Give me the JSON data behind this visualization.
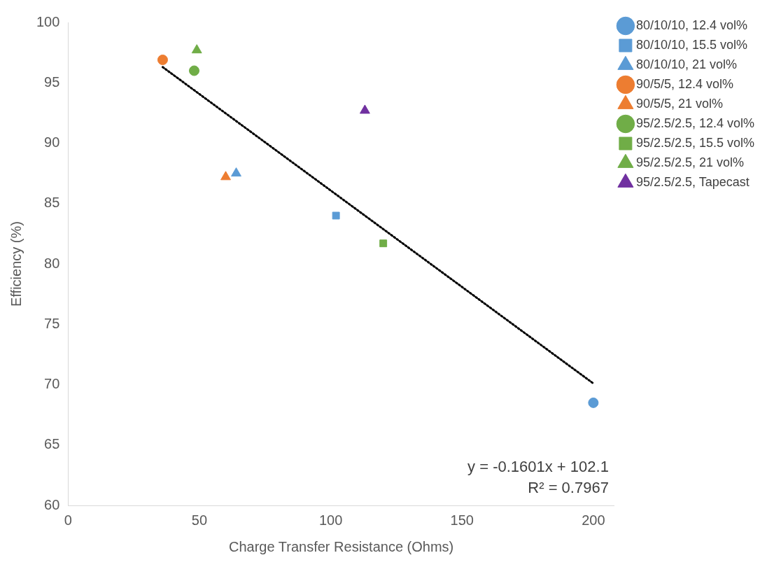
{
  "chart_data": {
    "type": "scatter",
    "xlabel": "Charge Transfer Resistance (Ohms)",
    "ylabel": "Efficiency (%)",
    "xlim": [
      0,
      208
    ],
    "xticks": [
      0,
      50,
      100,
      150,
      200
    ],
    "ylim": [
      60,
      100
    ],
    "yticks": [
      60,
      65,
      70,
      75,
      80,
      85,
      90,
      95,
      100
    ],
    "grid": false,
    "legend": "top right",
    "annotations": [
      "y = -0.1601x + 102.1",
      "R² = 0.7967"
    ],
    "series": [
      {
        "name": "80/10/10, 12.4 vol%",
        "color": "#5b9bd5",
        "marker": "circle",
        "x": [
          200
        ],
        "values": [
          68.5
        ]
      },
      {
        "name": "80/10/10, 15.5 vol%",
        "color": "#5b9bd5",
        "marker": "square",
        "x": [
          102
        ],
        "values": [
          84
        ]
      },
      {
        "name": "80/10/10, 21 vol%",
        "color": "#5b9bd5",
        "marker": "triangle",
        "x": [
          64
        ],
        "values": [
          87.5
        ]
      },
      {
        "name": "90/5/5, 12.4 vol%",
        "color": "#ed7d31",
        "marker": "circle",
        "x": [
          36
        ],
        "values": [
          96.9
        ]
      },
      {
        "name": "90/5/5, 21 vol%",
        "color": "#ed7d31",
        "marker": "triangle",
        "x": [
          60
        ],
        "values": [
          87.2
        ]
      },
      {
        "name": "95/2.5/2.5, 12.4 vol%",
        "color": "#70ad47",
        "marker": "circle",
        "x": [
          48
        ],
        "values": [
          96
        ]
      },
      {
        "name": "95/2.5/2.5, 15.5 vol%",
        "color": "#70ad47",
        "marker": "square",
        "x": [
          120
        ],
        "values": [
          81.7
        ]
      },
      {
        "name": "95/2.5/2.5, 21 vol%",
        "color": "#70ad47",
        "marker": "triangle",
        "x": [
          49
        ],
        "values": [
          97.7
        ]
      },
      {
        "name": "95/2.5/2.5, Tapecast",
        "color": "#7030a0",
        "marker": "triangle",
        "x": [
          113
        ],
        "values": [
          92.7
        ]
      },
      {
        "type": "line",
        "color": "#000000",
        "marker": "none",
        "line_style": "dotted",
        "x": [
          36,
          200
        ],
        "values": [
          96.3,
          70.1
        ]
      }
    ]
  }
}
